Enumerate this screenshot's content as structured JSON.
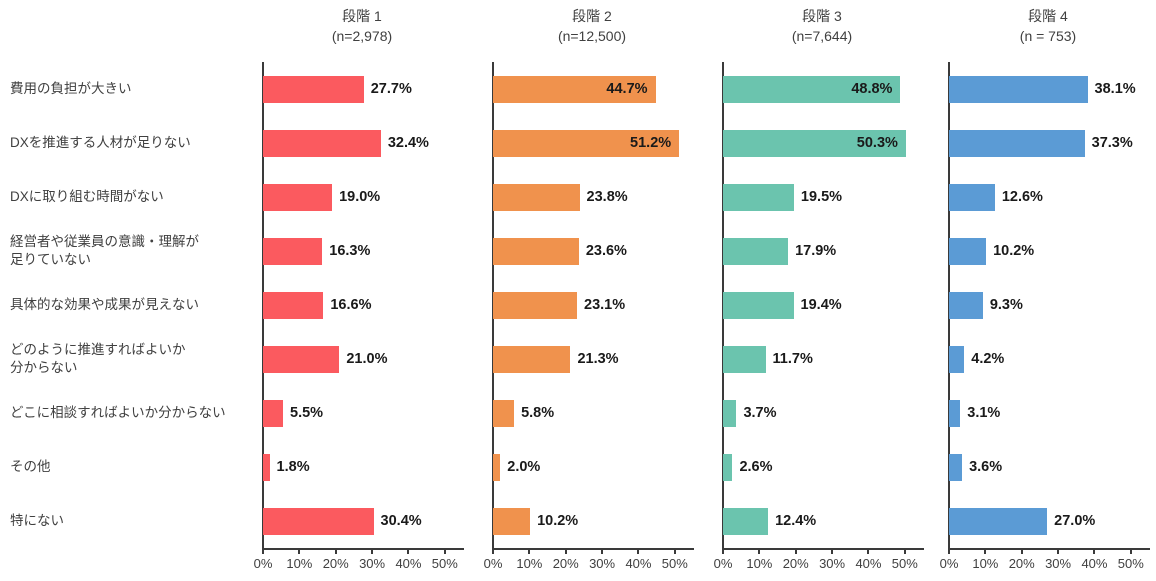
{
  "chart_data": {
    "type": "bar",
    "orientation": "horizontal",
    "title": "",
    "categories": [
      "費用の負担が大きい",
      "DXを推進する人材が足りない",
      "DXに取り組む時間がない",
      "経営者や従業員の意識・理解が\n足りていない",
      "具体的な効果や成果が見えない",
      "どのように推進すればよいか\n分からない",
      "どこに相談すればよいか分からない",
      "その他",
      "特にない"
    ],
    "series": [
      {
        "name": "段階 1",
        "n_label": "(n=2,978)",
        "color": "#FB5A5F",
        "values": [
          27.7,
          32.4,
          19.0,
          16.3,
          16.6,
          21.0,
          5.5,
          1.8,
          30.4
        ]
      },
      {
        "name": "段階 2",
        "n_label": "(n=12,500)",
        "color": "#F0924D",
        "values": [
          44.7,
          51.2,
          23.8,
          23.6,
          23.1,
          21.3,
          5.8,
          2.0,
          10.2
        ]
      },
      {
        "name": "段階 3",
        "n_label": "(n=7,644)",
        "color": "#6BC4AE",
        "values": [
          48.8,
          50.3,
          19.5,
          17.9,
          19.4,
          11.7,
          3.7,
          2.6,
          12.4
        ]
      },
      {
        "name": "段階 4",
        "n_label": "(n = 753)",
        "color": "#5B9BD5",
        "values": [
          38.1,
          37.3,
          12.6,
          10.2,
          9.3,
          4.2,
          3.1,
          3.6,
          27.0
        ]
      }
    ],
    "x_ticks": [
      "0%",
      "10%",
      "20%",
      "30%",
      "40%",
      "50%"
    ],
    "x_tick_values": [
      0,
      10,
      20,
      30,
      40,
      50
    ],
    "xlim": [
      0,
      55
    ],
    "value_suffix": "%",
    "value_decimals": 1,
    "inside_label_threshold": 42,
    "grid": false,
    "legend_position": "none"
  }
}
